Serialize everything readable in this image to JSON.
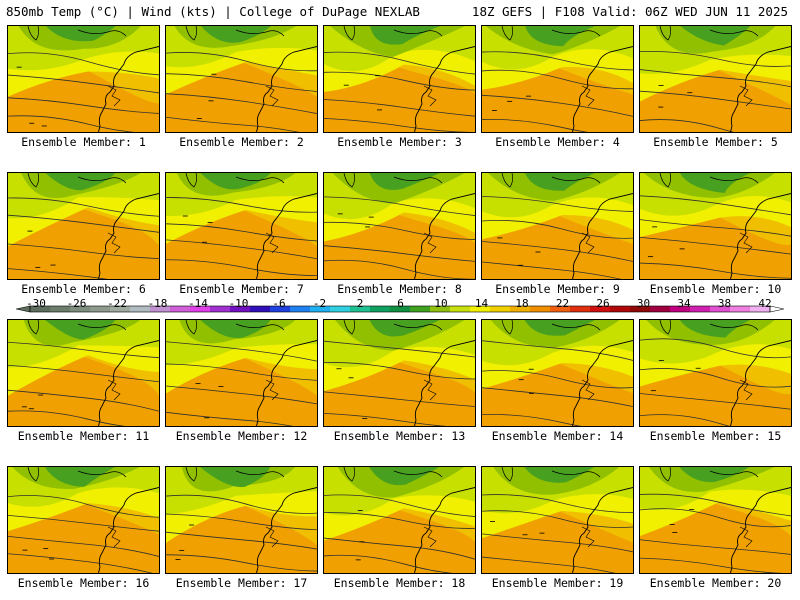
{
  "header": {
    "left": "850mb Temp (°C) | Wind (kts) | College of DuPage NEXLAB",
    "right": "18Z GEFS | F108 Valid: 06Z WED JUN 11 2025"
  },
  "member_label_prefix": "Ensemble Member: ",
  "members": [
    1,
    2,
    3,
    4,
    5,
    6,
    7,
    8,
    9,
    10,
    11,
    12,
    13,
    14,
    15,
    16,
    17,
    18,
    19,
    20
  ],
  "colorbar": {
    "tick_labels": [
      "-30",
      "-26",
      "-22",
      "-18",
      "-14",
      "-10",
      "-6",
      "-2",
      "2",
      "6",
      "10",
      "14",
      "18",
      "22",
      "26",
      "30",
      "34",
      "38",
      "42"
    ],
    "colors": [
      "#5e6e5e",
      "#6e7e6e",
      "#7e8e7e",
      "#8e9a8e",
      "#a0aaa0",
      "#b0bcc0",
      "#c090d0",
      "#d060d8",
      "#e040e8",
      "#a030d0",
      "#7010c0",
      "#3010b8",
      "#2040e0",
      "#2080f0",
      "#20b0f0",
      "#30d0e0",
      "#20c090",
      "#10a060",
      "#109040",
      "#40a020",
      "#90c010",
      "#c8e010",
      "#f0f000",
      "#f0d000",
      "#f0b000",
      "#f09000",
      "#f06010",
      "#e03010",
      "#d01010",
      "#b00808",
      "#900808",
      "#a00040",
      "#c00080",
      "#d020b0",
      "#e050d0",
      "#f080e0",
      "#f0b0f0"
    ]
  },
  "panel_palette": {
    "background": "#f0a000",
    "warm": "#f0c000",
    "mid": "#f0f000",
    "cool": "#c8e000",
    "cold": "#90c000",
    "coldest": "#48a020",
    "contour": "#303030",
    "coast": "#000000"
  }
}
